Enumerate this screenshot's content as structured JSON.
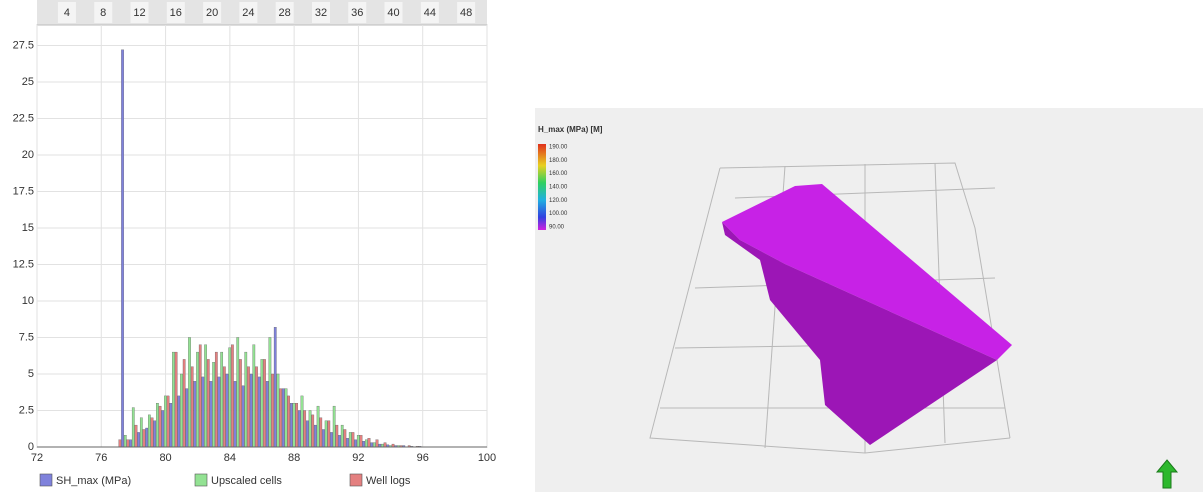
{
  "chart_data": {
    "type": "bar",
    "x": [
      76.5,
      77,
      77.5,
      78,
      78.5,
      79,
      79.5,
      80,
      80.5,
      81,
      81.5,
      82,
      82.5,
      83,
      83.5,
      84,
      84.5,
      85,
      85.5,
      86,
      86.5,
      87,
      87.5,
      88,
      88.5,
      89,
      89.5,
      90,
      90.5,
      91,
      91.5,
      92,
      92.5,
      93,
      93.5,
      94,
      94.5,
      95,
      95.5,
      96
    ],
    "series": [
      {
        "name": "SH_max (MPa)",
        "color": "#7f82dc",
        "values": [
          0,
          0,
          27.2,
          0.5,
          1,
          1.3,
          1.8,
          2.5,
          3,
          3.5,
          4,
          4.5,
          4.8,
          4.5,
          4.8,
          5,
          4.5,
          4.2,
          5,
          4.8,
          4.5,
          8.2,
          4,
          3,
          2.5,
          1.8,
          1.5,
          1.2,
          1,
          0.8,
          0.6,
          0.5,
          0.4,
          0.3,
          0.2,
          0.15,
          0.1,
          0.1,
          0.05,
          0.05
        ]
      },
      {
        "name": "Upscaled cells",
        "color": "#93e293",
        "values": [
          0,
          0,
          0.8,
          2.7,
          2,
          2.2,
          3,
          3.5,
          6.5,
          5,
          7.5,
          6.5,
          7,
          5.8,
          6.5,
          6.8,
          7.5,
          6.5,
          7,
          6,
          7.5,
          5,
          4,
          3,
          3.5,
          2.5,
          2.8,
          1.8,
          2.8,
          1.5,
          1,
          0.8,
          0.5,
          0.3,
          0.2,
          0.1,
          0.1,
          0,
          0,
          0
        ]
      },
      {
        "name": "Well logs",
        "color": "#e48080",
        "values": [
          0,
          0.5,
          0.5,
          1.5,
          1.2,
          2,
          2.8,
          3.5,
          6.5,
          6,
          5.5,
          7,
          6,
          6.5,
          5.5,
          7,
          6,
          5.5,
          5.5,
          6,
          5,
          4,
          3.5,
          3,
          2.5,
          2.2,
          2,
          1.8,
          1.5,
          1.2,
          1,
          0.8,
          0.6,
          0.5,
          0.3,
          0.2,
          0.1,
          0.1,
          0.05,
          0
        ]
      }
    ],
    "xlim": [
      72,
      100
    ],
    "xticks": [
      72,
      76,
      80,
      84,
      88,
      92,
      96,
      100
    ],
    "x2lim": [
      0.7,
      50.3
    ],
    "x2ticks": [
      4,
      8,
      12,
      16,
      20,
      24,
      28,
      32,
      36,
      40,
      44,
      48
    ],
    "ylim": [
      0,
      28.9
    ],
    "yticks": [
      0,
      2.5,
      5,
      7.5,
      10,
      12.5,
      15,
      17.5,
      20,
      22.5,
      25,
      27.5
    ],
    "grid": true,
    "legend": "bottom"
  },
  "view3d": {
    "title": "H_max (MPa) [M]",
    "colorbar_labels": [
      "190.00",
      "180.00",
      "160.00",
      "140.00",
      "120.00",
      "100.00",
      "90.00"
    ]
  }
}
